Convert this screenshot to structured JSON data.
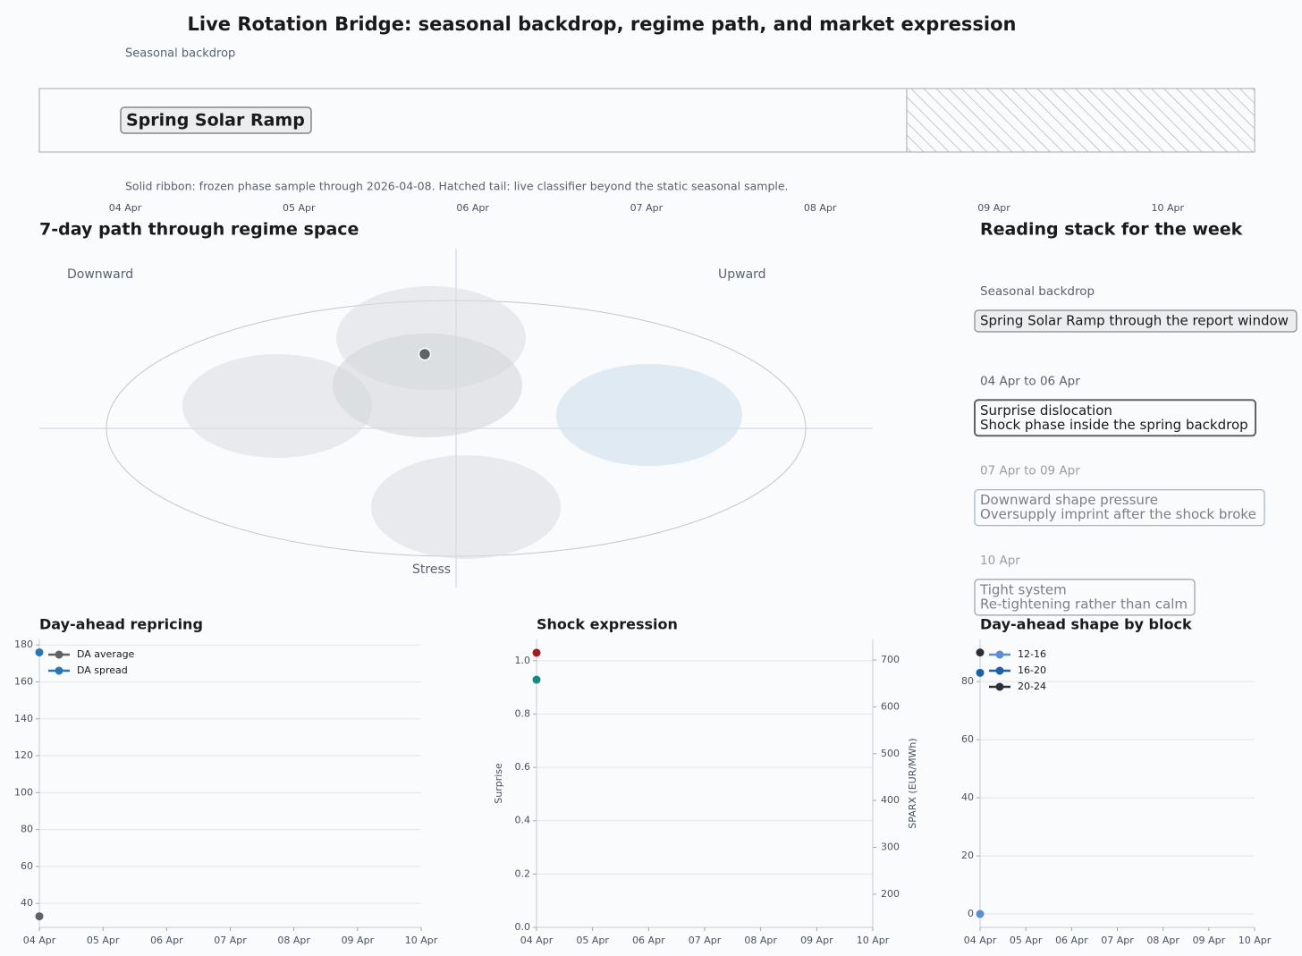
{
  "title": "Live Rotation Bridge: seasonal backdrop, regime path, and market expression",
  "seasonal": {
    "label": "Seasonal backdrop",
    "phase": "Spring Solar Ramp",
    "caption": "Solid ribbon: frozen phase sample through 2026-04-08. Hatched tail: live classifier beyond the static seasonal sample.",
    "dates": [
      "04 Apr",
      "05 Apr",
      "06 Apr",
      "07 Apr",
      "08 Apr",
      "09 Apr",
      "10 Apr"
    ]
  },
  "regime": {
    "title": "7-day path through regime space",
    "labels": {
      "left": "Downward",
      "right": "Upward",
      "bottom": "Stress"
    }
  },
  "reading_stack": {
    "title": "Reading stack for the week",
    "items": [
      {
        "heading": "Seasonal backdrop",
        "lines": [
          "Spring Solar Ramp through the report window"
        ]
      },
      {
        "heading": "04 Apr to 06 Apr",
        "lines": [
          "Surprise dislocation",
          "Shock phase inside the spring backdrop"
        ]
      },
      {
        "heading": "07 Apr to 09 Apr",
        "lines": [
          "Downward shape pressure",
          "Oversupply imprint after the shock broke"
        ]
      },
      {
        "heading": "10 Apr",
        "lines": [
          "Tight system",
          "Re-tightening rather than calm"
        ]
      }
    ]
  },
  "chart_data": [
    {
      "type": "line",
      "title": "Day-ahead repricing",
      "categories": [
        "04 Apr",
        "05 Apr",
        "06 Apr",
        "07 Apr",
        "08 Apr",
        "09 Apr",
        "10 Apr"
      ],
      "series": [
        {
          "name": "DA average",
          "color": "#5f6368",
          "values": [
            33,
            null,
            null,
            null,
            null,
            null,
            null
          ]
        },
        {
          "name": "DA spread",
          "color": "#2878b5",
          "values": [
            176,
            null,
            null,
            null,
            null,
            null,
            null
          ]
        }
      ],
      "ylim": [
        27,
        183
      ],
      "yticks": [
        40,
        60,
        80,
        100,
        120,
        140,
        160,
        180
      ],
      "grid": true,
      "legend": "upper left"
    },
    {
      "type": "line",
      "title": "Shock expression",
      "ylabel": "Surprise",
      "y2label": "SPARX (EUR/MWh)",
      "categories": [
        "04 Apr",
        "05 Apr",
        "06 Apr",
        "07 Apr",
        "08 Apr",
        "09 Apr",
        "10 Apr"
      ],
      "series": [
        {
          "color": "#a51c1c",
          "values": [
            1.03,
            null,
            null,
            null,
            null,
            null,
            null
          ]
        },
        {
          "color": "#148a7e",
          "axis": "y2",
          "values": [
            658,
            null,
            null,
            null,
            null,
            null,
            null
          ]
        }
      ],
      "ylim": [
        0,
        1.08
      ],
      "yticks": [
        {
          "value": 0,
          "label": "0.0"
        },
        {
          "value": 0.2,
          "label": "0.2"
        },
        {
          "value": 0.4,
          "label": "0.4"
        },
        {
          "value": 0.6,
          "label": "0.6"
        },
        {
          "value": 0.8,
          "label": "0.8"
        },
        {
          "value": 1,
          "label": "1.0"
        }
      ],
      "y2lim": [
        129,
        744
      ],
      "y2ticks": [
        200,
        300,
        400,
        500,
        600,
        700
      ],
      "grid": true
    },
    {
      "type": "line",
      "title": "Day-ahead shape by block",
      "categories": [
        "04 Apr",
        "05 Apr",
        "06 Apr",
        "07 Apr",
        "08 Apr",
        "09 Apr",
        "10 Apr"
      ],
      "series": [
        {
          "name": "12-16",
          "color": "#5b8fd1",
          "values": [
            0,
            null,
            null,
            null,
            null,
            null,
            null
          ]
        },
        {
          "name": "16-20",
          "color": "#1f5fa8",
          "values": [
            83,
            null,
            null,
            null,
            null,
            null,
            null
          ]
        },
        {
          "name": "20-24",
          "color": "#2b2f3a",
          "values": [
            90,
            null,
            null,
            null,
            null,
            null,
            null
          ]
        }
      ],
      "ylim": [
        -4.6,
        94.5
      ],
      "yticks": [
        0,
        20,
        40,
        60,
        80
      ],
      "grid": true,
      "legend": "upper left"
    }
  ]
}
